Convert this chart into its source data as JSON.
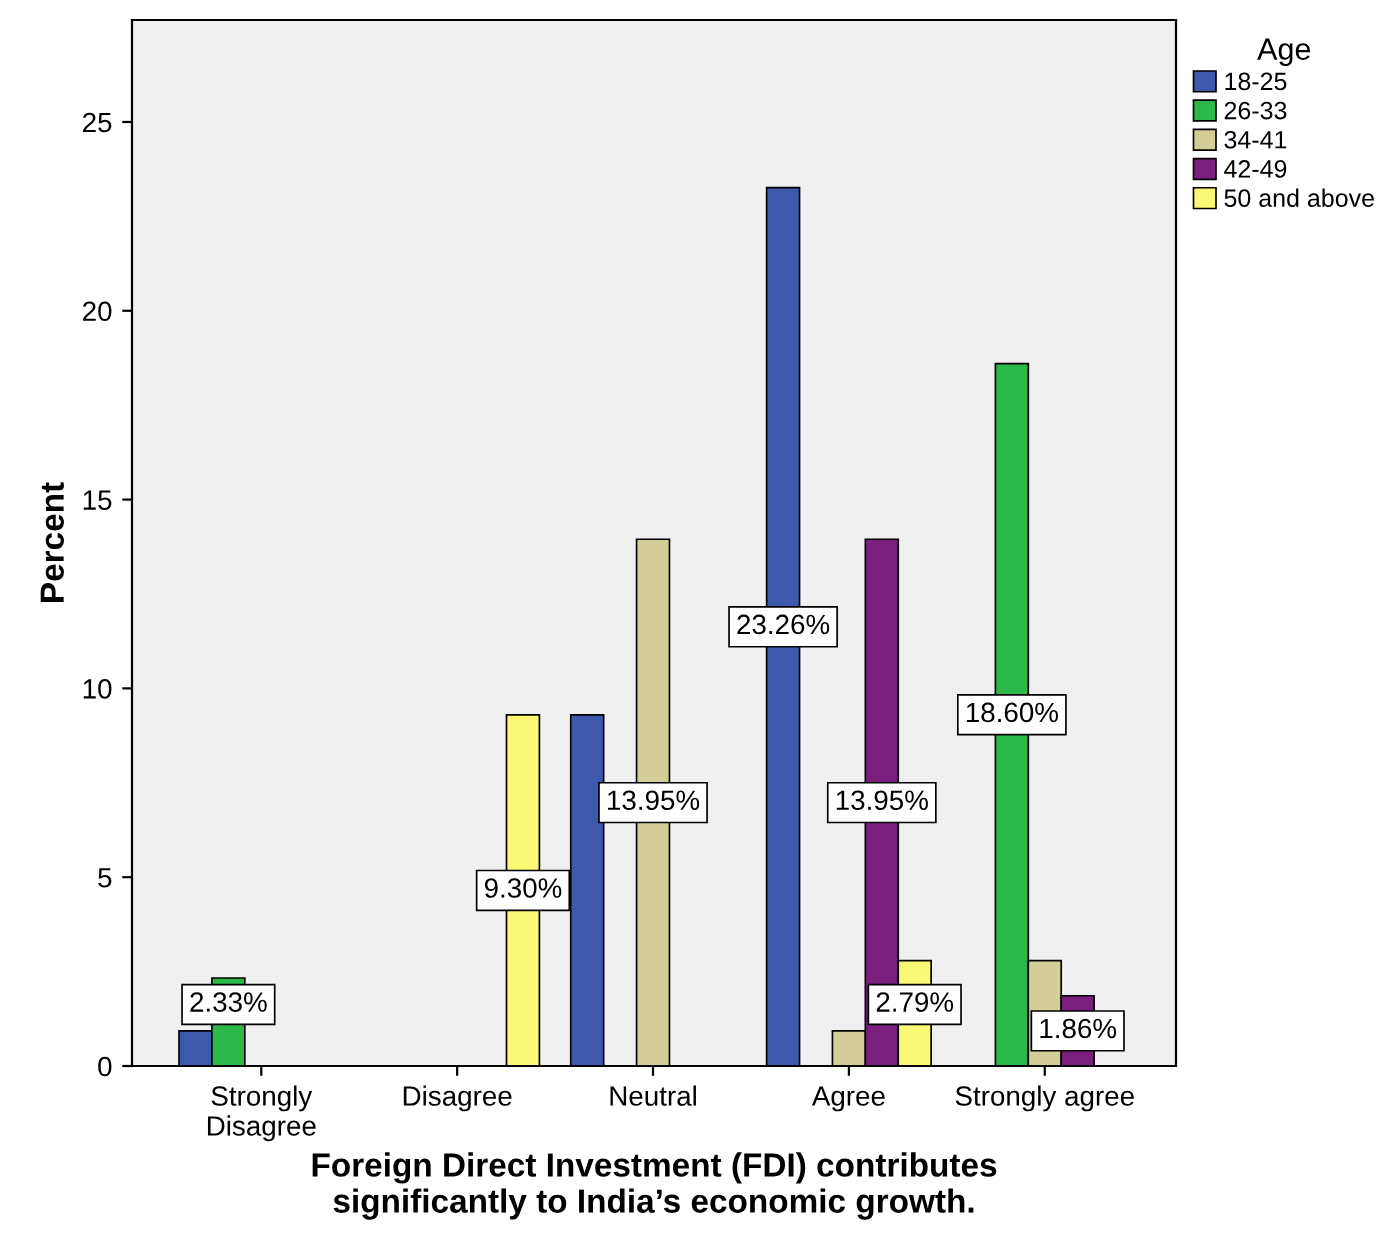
{
  "chart_data": {
    "type": "bar",
    "xlabel": "Foreign Direct Investment (FDI) contributes\nsignificantly to India’s economic growth.",
    "ylabel": "Percent",
    "legend_title": "Age",
    "legend": "top right",
    "grid": false,
    "categories": [
      "Strongly\nDisagree",
      "Disagree",
      "Neutral",
      "Agree",
      "Strongly agree"
    ],
    "ylim": [
      0,
      27.7
    ],
    "yticks": [
      0,
      5,
      10,
      15,
      20,
      25
    ],
    "series": [
      {
        "name": "18-25",
        "color": "#3e58ac",
        "values": [
          0.93,
          null,
          9.3,
          23.26,
          null
        ],
        "value_labels": [
          null,
          null,
          null,
          "23.26%",
          null
        ]
      },
      {
        "name": "26-33",
        "color": "#2db84a",
        "values": [
          2.33,
          null,
          null,
          null,
          18.6
        ],
        "value_labels": [
          "2.33%",
          null,
          null,
          null,
          "18.60%"
        ]
      },
      {
        "name": "34-41",
        "color": "#d3ce97",
        "values": [
          null,
          null,
          13.95,
          0.93,
          2.79
        ],
        "value_labels": [
          null,
          null,
          "13.95%",
          null,
          null
        ]
      },
      {
        "name": "42-49",
        "color": "#7b1f7f",
        "values": [
          null,
          null,
          null,
          13.95,
          1.86
        ],
        "value_labels": [
          null,
          null,
          null,
          "13.95%",
          "1.86%"
        ]
      },
      {
        "name": "50 and above",
        "color": "#fbf876",
        "values": [
          null,
          9.3,
          null,
          2.79,
          null
        ],
        "value_labels": [
          null,
          "9.30%",
          null,
          "2.79%",
          null
        ]
      }
    ]
  }
}
